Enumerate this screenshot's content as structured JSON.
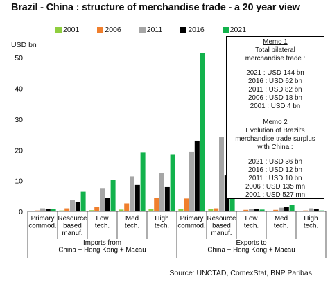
{
  "title": "Brazil - China : structure of merchandise trade - a 20 year view",
  "source": "Source: UNCTAD, ComexStat, BNP Paribas",
  "memo1": {
    "head": "Memo 1",
    "sub": [
      "Total bilateral",
      "merchandise trade :"
    ],
    "lines": [
      "2021 : USD 144 bn",
      "2016 : USD 62 bn",
      "2011 : USD 82 bn",
      "2006 : USD 18 bn",
      "2001 : USD  4 bn"
    ]
  },
  "memo2": {
    "head": "Memo 2",
    "sub": [
      "Evolution of Brazil's",
      "merchandise trade surplus",
      "with China :"
    ],
    "lines": [
      "2021 : USD 36 bn",
      "2016 : USD 12 bn",
      "2011 : USD 10 bn",
      "2006 : USD 135 mn",
      "2001 : USD  527 mn"
    ]
  },
  "chart_data": {
    "type": "bar",
    "ylabel": "USD bn",
    "ylim": [
      0,
      55
    ],
    "yticks": [
      0,
      10,
      20,
      30,
      40,
      50
    ],
    "grid": false,
    "legend": "top",
    "categories": [
      [
        "Primary",
        "commod."
      ],
      [
        "Resource",
        "based",
        "manuf."
      ],
      [
        "Low",
        "tech."
      ],
      [
        "Med",
        "tech."
      ],
      [
        "High",
        "tech."
      ],
      [
        "Primary",
        "commod."
      ],
      [
        "Resource",
        "based",
        "manuf."
      ],
      [
        "Low",
        "tech."
      ],
      [
        "Med",
        "tech."
      ],
      [
        "High",
        "tech."
      ]
    ],
    "groups": [
      {
        "label": [
          "Imports from",
          "China + Hong Kong + Macau"
        ],
        "start": 0,
        "end": 4
      },
      {
        "label": [
          "Exports to",
          "China + Hong Kong + Macau"
        ],
        "start": 5,
        "end": 9
      }
    ],
    "series": [
      {
        "name": "2001",
        "color": "#8fce3f",
        "values": [
          0.1,
          0.3,
          0.4,
          0.6,
          0.7,
          0.8,
          0.8,
          0.1,
          0.2,
          0.1
        ]
      },
      {
        "name": "2006",
        "color": "#f07f2d",
        "values": [
          0.3,
          1.0,
          1.5,
          2.6,
          4.3,
          4.2,
          1.0,
          0.5,
          0.5,
          0.3
        ]
      },
      {
        "name": "2011",
        "color": "#a6a6a6",
        "values": [
          1.0,
          3.8,
          7.6,
          11.4,
          12.4,
          19.4,
          24.2,
          0.9,
          1.2,
          1.0
        ]
      },
      {
        "name": "2016",
        "color": "#000000",
        "values": [
          0.9,
          3.0,
          4.5,
          8.6,
          7.9,
          23.0,
          11.7,
          0.9,
          1.4,
          0.7
        ]
      },
      {
        "name": "2021",
        "color": "#12b24c",
        "values": [
          0.9,
          6.4,
          10.2,
          19.3,
          18.6,
          51.4,
          35.5,
          0.6,
          2.1,
          0.3
        ]
      }
    ]
  }
}
